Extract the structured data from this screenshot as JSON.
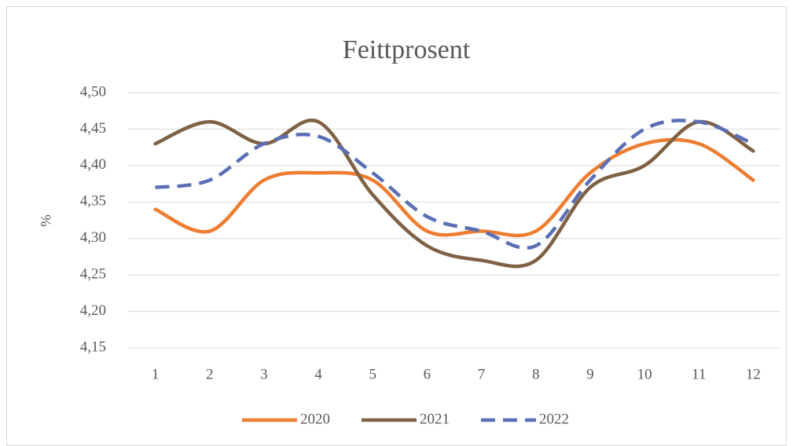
{
  "chart_data": {
    "type": "line",
    "title": "Feittprosent",
    "y_label": "%",
    "categories": [
      "1",
      "2",
      "3",
      "4",
      "5",
      "6",
      "7",
      "8",
      "9",
      "10",
      "11",
      "12"
    ],
    "series": [
      {
        "name": "2020",
        "color": "#ed7d31",
        "line_style": "solid",
        "values": [
          4.34,
          4.31,
          4.38,
          4.39,
          4.38,
          4.31,
          4.31,
          4.31,
          4.39,
          4.43,
          4.43,
          4.38
        ]
      },
      {
        "name": "2021",
        "color": "#7f6145",
        "line_style": "solid",
        "values": [
          4.43,
          4.46,
          4.43,
          4.46,
          4.36,
          4.29,
          4.27,
          4.27,
          4.37,
          4.4,
          4.46,
          4.42
        ]
      },
      {
        "name": "2022",
        "color": "#5b6fb5",
        "line_style": "dashed",
        "values": [
          4.37,
          4.38,
          4.43,
          4.44,
          4.39,
          4.33,
          4.31,
          4.29,
          4.38,
          4.45,
          4.46,
          4.43
        ]
      }
    ],
    "ylim": [
      4.15,
      4.5
    ],
    "yticks": [
      {
        "value": 4.15,
        "label": "4,15"
      },
      {
        "value": 4.2,
        "label": "4,20"
      },
      {
        "value": 4.25,
        "label": "4,25"
      },
      {
        "value": 4.3,
        "label": "4,30"
      },
      {
        "value": 4.35,
        "label": "4,35"
      },
      {
        "value": 4.4,
        "label": "4,40"
      },
      {
        "value": 4.45,
        "label": "4,45"
      },
      {
        "value": 4.5,
        "label": "4,50"
      }
    ],
    "grid": true,
    "smooth": true,
    "legend": "bottom"
  }
}
